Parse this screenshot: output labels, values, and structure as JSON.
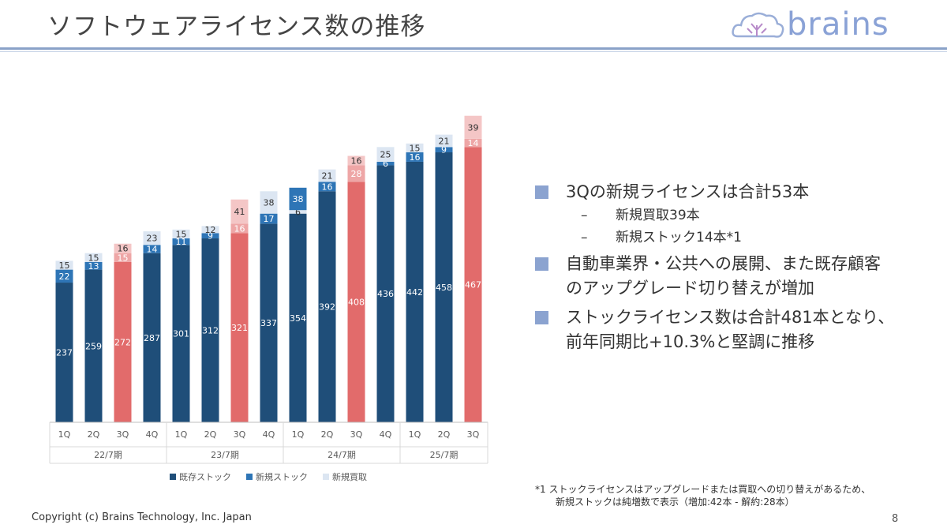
{
  "header": {
    "title": "ソフトウェアライセンス数の推移",
    "logo_text": "brains"
  },
  "chart_data": {
    "type": "bar",
    "stacked": true,
    "categories": [
      "1Q",
      "2Q",
      "3Q",
      "4Q",
      "1Q",
      "2Q",
      "3Q",
      "4Q",
      "1Q",
      "2Q",
      "3Q",
      "4Q",
      "1Q",
      "2Q",
      "3Q"
    ],
    "groups": [
      {
        "label": "22/7期",
        "count": 4
      },
      {
        "label": "23/7期",
        "count": 4
      },
      {
        "label": "24/7期",
        "count": 4
      },
      {
        "label": "25/7期",
        "count": 3
      }
    ],
    "highlight_indices": [
      2,
      6,
      10,
      14
    ],
    "series": [
      {
        "name": "既存ストック",
        "color": "#1f4e79",
        "highlight_color": "#e26b6b",
        "values": [
          237,
          259,
          272,
          287,
          301,
          312,
          321,
          337,
          354,
          392,
          408,
          436,
          442,
          458,
          467
        ]
      },
      {
        "name": "新規ストック",
        "color": "#2e75b6",
        "highlight_color": "#eea6a6",
        "values": [
          22,
          13,
          15,
          14,
          11,
          9,
          16,
          17,
          null,
          16,
          28,
          6,
          16,
          9,
          14
        ]
      },
      {
        "name": "新規買取",
        "color": "#dce6f2",
        "highlight_color": "#f4c6c6",
        "values": [
          15,
          15,
          16,
          23,
          15,
          12,
          41,
          38,
          6,
          21,
          16,
          25,
          15,
          21,
          39
        ]
      },
      {
        "name": "",
        "color": "#2e75b6",
        "highlight_color": "#eea6a6",
        "values": [
          null,
          null,
          null,
          null,
          null,
          null,
          null,
          null,
          38,
          null,
          null,
          null,
          null,
          null,
          null
        ]
      }
    ],
    "legend": [
      "既存ストック",
      "新規ストック",
      "新規買取"
    ],
    "legend_position": "bottom",
    "grid": false
  },
  "bullets": [
    {
      "text": "3Qの新規ライセンスは合計53本",
      "sub": [
        "新規買取39本",
        "新規ストック14本*1"
      ]
    },
    {
      "text": "自動車業界・公共への展開、また既存顧客",
      "text2": "のアップグレード切り替えが増加",
      "sub": []
    },
    {
      "text": "ストックライセンス数は合計481本となり、",
      "text2": "前年同期比+10.3%と堅調に推移",
      "sub": []
    }
  ],
  "footnote": {
    "line1": "*1 ストックライセンスはアップグレードまたは買取への切り替えがあるため、",
    "line2": "新規ストックは純増数で表示（増加:42本 - 解約:28本）"
  },
  "copyright": "Copyright (c) Brains Technology, Inc. Japan",
  "page_number": "8",
  "dash": "–"
}
